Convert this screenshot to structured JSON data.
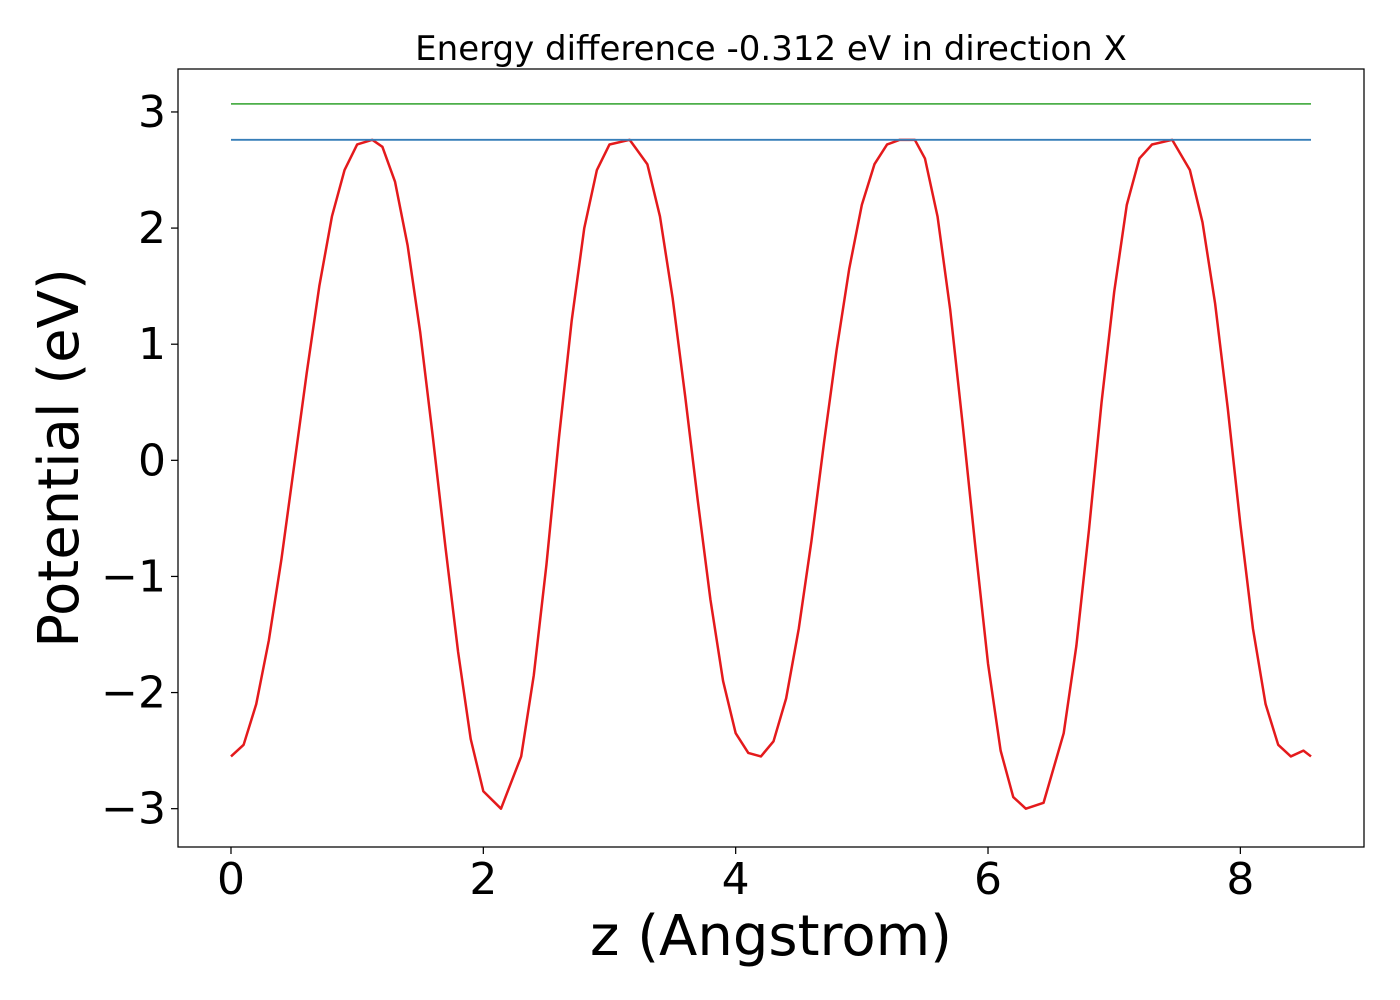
{
  "chart_data": {
    "type": "line",
    "title": "Energy difference -0.312 eV in direction X",
    "xlabel": "z (Angstrom)",
    "ylabel": "Potential (eV)",
    "xlim": [
      -0.42,
      8.98
    ],
    "ylim": [
      -3.33,
      3.37
    ],
    "grid": false,
    "x_ticks": [
      0,
      2,
      4,
      6,
      8
    ],
    "y_ticks": [
      -3,
      -2,
      -1,
      0,
      1,
      2,
      3
    ],
    "x_tick_labels": [
      "0",
      "2",
      "4",
      "6",
      "8"
    ],
    "y_tick_labels": [
      "−3",
      "−2",
      "−1",
      "0",
      "1",
      "2",
      "3"
    ],
    "series": [
      {
        "color": "#e41a1c",
        "kind": "potential",
        "x": [
          0.0,
          0.1,
          0.2,
          0.3,
          0.4,
          0.5,
          0.6,
          0.7,
          0.8,
          0.9,
          1.0,
          1.12,
          1.2,
          1.3,
          1.4,
          1.5,
          1.6,
          1.7,
          1.8,
          1.9,
          2.0,
          2.14,
          2.3,
          2.4,
          2.5,
          2.6,
          2.7,
          2.8,
          2.9,
          3.0,
          3.16,
          3.3,
          3.4,
          3.5,
          3.6,
          3.7,
          3.8,
          3.9,
          4.0,
          4.1,
          4.2,
          4.3,
          4.4,
          4.5,
          4.6,
          4.7,
          4.8,
          4.9,
          5.0,
          5.1,
          5.2,
          5.3,
          5.42,
          5.5,
          5.6,
          5.7,
          5.8,
          5.9,
          6.0,
          6.1,
          6.2,
          6.3,
          6.44,
          6.6,
          6.7,
          6.8,
          6.9,
          7.0,
          7.1,
          7.2,
          7.3,
          7.46,
          7.6,
          7.7,
          7.8,
          7.9,
          8.0,
          8.1,
          8.2,
          8.3,
          8.4,
          8.5,
          8.56
        ],
        "y": [
          -2.55,
          -2.45,
          -2.1,
          -1.55,
          -0.85,
          -0.05,
          0.75,
          1.5,
          2.1,
          2.5,
          2.72,
          2.76,
          2.7,
          2.4,
          1.85,
          1.1,
          0.2,
          -0.75,
          -1.65,
          -2.4,
          -2.85,
          -3.0,
          -2.55,
          -1.85,
          -0.9,
          0.2,
          1.2,
          2.0,
          2.5,
          2.72,
          2.76,
          2.55,
          2.1,
          1.4,
          0.55,
          -0.35,
          -1.2,
          -1.9,
          -2.35,
          -2.52,
          -2.55,
          -2.42,
          -2.05,
          -1.45,
          -0.7,
          0.15,
          0.95,
          1.65,
          2.2,
          2.55,
          2.72,
          2.76,
          2.76,
          2.6,
          2.1,
          1.3,
          0.3,
          -0.75,
          -1.75,
          -2.5,
          -2.9,
          -3.0,
          -2.95,
          -2.35,
          -1.6,
          -0.6,
          0.5,
          1.45,
          2.2,
          2.6,
          2.72,
          2.76,
          2.5,
          2.05,
          1.35,
          0.45,
          -0.55,
          -1.45,
          -2.1,
          -2.45,
          -2.55,
          -2.5,
          -2.55
        ]
      },
      {
        "color": "#377eb8",
        "kind": "level",
        "x": [
          0.0,
          8.56
        ],
        "y": [
          2.76,
          2.76
        ]
      },
      {
        "color": "#4daf4a",
        "kind": "level",
        "x": [
          0.0,
          8.56
        ],
        "y": [
          3.07,
          3.07
        ]
      }
    ]
  }
}
